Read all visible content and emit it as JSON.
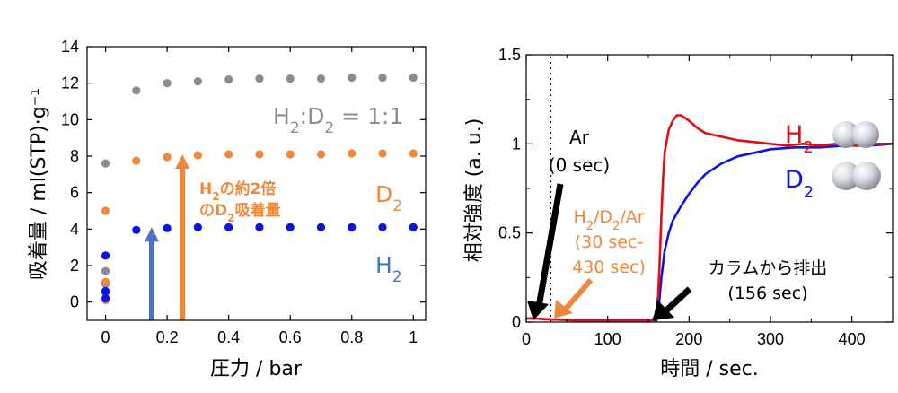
{
  "colors": {
    "gray": "#8c8c8c",
    "orange": "#f0883c",
    "blue": "#0a14e6",
    "red": "#e60a14",
    "arrow_blue": "#4a72c0",
    "black": "#000000"
  },
  "chart_data": [
    {
      "type": "scatter",
      "xlabel": "圧力 / bar",
      "ylabel": "吸着量 / ml(STP)·g⁻¹",
      "xlim": [
        -0.06,
        1.04
      ],
      "ylim": [
        -1,
        14
      ],
      "xticks": [
        "0",
        "0.2",
        "0.4",
        "0.6",
        "0.8",
        "1"
      ],
      "yticks": [
        "0",
        "2",
        "4",
        "6",
        "8",
        "10",
        "12",
        "14"
      ],
      "series": [
        {
          "name": "H₂:D₂ = 1:1",
          "color": "gray",
          "x": [
            0,
            0,
            0,
            0,
            0,
            0.1,
            0.2,
            0.3,
            0.4,
            0.5,
            0.6,
            0.7,
            0.8,
            0.9,
            1.0
          ],
          "y": [
            0.15,
            0.5,
            1.0,
            1.7,
            7.6,
            11.6,
            12.0,
            12.1,
            12.2,
            12.25,
            12.25,
            12.25,
            12.3,
            12.3,
            12.3
          ]
        },
        {
          "name": "D₂",
          "color": "orange",
          "x": [
            0,
            0,
            0,
            0.1,
            0.2,
            0.3,
            0.4,
            0.5,
            0.6,
            0.7,
            0.8,
            0.9,
            1.0
          ],
          "y": [
            0.1,
            1.1,
            5.0,
            7.75,
            7.95,
            8.05,
            8.1,
            8.1,
            8.1,
            8.1,
            8.15,
            8.15,
            8.15
          ]
        },
        {
          "name": "H₂",
          "color": "blue",
          "x": [
            0,
            0,
            0,
            0.1,
            0.2,
            0.3,
            0.4,
            0.5,
            0.6,
            0.7,
            0.8,
            0.9,
            1.0
          ],
          "y": [
            0.2,
            0.6,
            2.55,
            3.95,
            4.05,
            4.1,
            4.1,
            4.1,
            4.1,
            4.1,
            4.1,
            4.1,
            4.1
          ]
        }
      ],
      "series_labels": {
        "mix": {
          "pre": "H",
          "s1": "2",
          "mid": ":D",
          "s2": "2",
          "post": " = 1:1"
        },
        "d2": {
          "base": "D",
          "sub": "2"
        },
        "h2": {
          "base": "H",
          "sub": "2"
        }
      },
      "annotations": {
        "arrow_h2_x": 0.15,
        "arrow_h2_y": 4.1,
        "arrow_d2_x": 0.25,
        "arrow_d2_y": 8.1,
        "note_line1": {
          "a": "H",
          "b": "2",
          "c": "の約2倍"
        },
        "note_line2": {
          "a": "のD",
          "b": "2",
          "c": "吸着量"
        }
      }
    },
    {
      "type": "line",
      "xlabel": "時間 / sec.",
      "ylabel": "相対強度 (a. u.)",
      "xlim": [
        0,
        450
      ],
      "ylim": [
        0,
        1.5
      ],
      "xticks": [
        "0",
        "100",
        "200",
        "300",
        "400"
      ],
      "yticks": [
        "0",
        "0.5",
        "1",
        "1.5"
      ],
      "dotted_line_x": 30,
      "series": [
        {
          "name": "H₂",
          "color": "red",
          "x": [
            0,
            10,
            30,
            60,
            100,
            140,
            155,
            160,
            162,
            164,
            166,
            168,
            170,
            175,
            180,
            185,
            190,
            200,
            210,
            220,
            240,
            260,
            280,
            300,
            320,
            340,
            360,
            380,
            400,
            420,
            450
          ],
          "y": [
            0.02,
            0.02,
            0.015,
            0.01,
            0.01,
            0.01,
            0.01,
            0.05,
            0.15,
            0.35,
            0.6,
            0.8,
            0.95,
            1.08,
            1.13,
            1.16,
            1.16,
            1.13,
            1.09,
            1.06,
            1.04,
            1.02,
            1.01,
            1.0,
            0.99,
            1.0,
            0.99,
            1.0,
            0.99,
            1.0,
            1.0
          ]
        },
        {
          "name": "D₂",
          "color": "blue",
          "x": [
            0,
            10,
            30,
            60,
            100,
            140,
            160,
            163,
            166,
            170,
            175,
            180,
            190,
            200,
            210,
            220,
            240,
            260,
            280,
            300,
            330,
            360,
            390,
            420,
            450
          ],
          "y": [
            0.02,
            0.02,
            0.015,
            0.01,
            0.01,
            0.01,
            0.01,
            0.1,
            0.25,
            0.4,
            0.5,
            0.57,
            0.65,
            0.72,
            0.78,
            0.83,
            0.89,
            0.93,
            0.95,
            0.97,
            0.98,
            0.98,
            0.99,
            0.99,
            1.0
          ]
        }
      ],
      "series_labels": {
        "h2": {
          "base": "H",
          "sub": "2"
        },
        "d2": {
          "base": "D",
          "sub": "2"
        }
      },
      "annotations": {
        "ar_line1": "Ar",
        "ar_line2": "(0 sec)",
        "mix_line1": {
          "a": "H",
          "b": "2",
          "c": "/D",
          "d": "2",
          "e": "/Ar"
        },
        "mix_line2": "(30 sec-",
        "mix_line3": "430 sec)",
        "column_line1": "カラムから排出",
        "column_line2": "(156 sec)"
      }
    }
  ]
}
